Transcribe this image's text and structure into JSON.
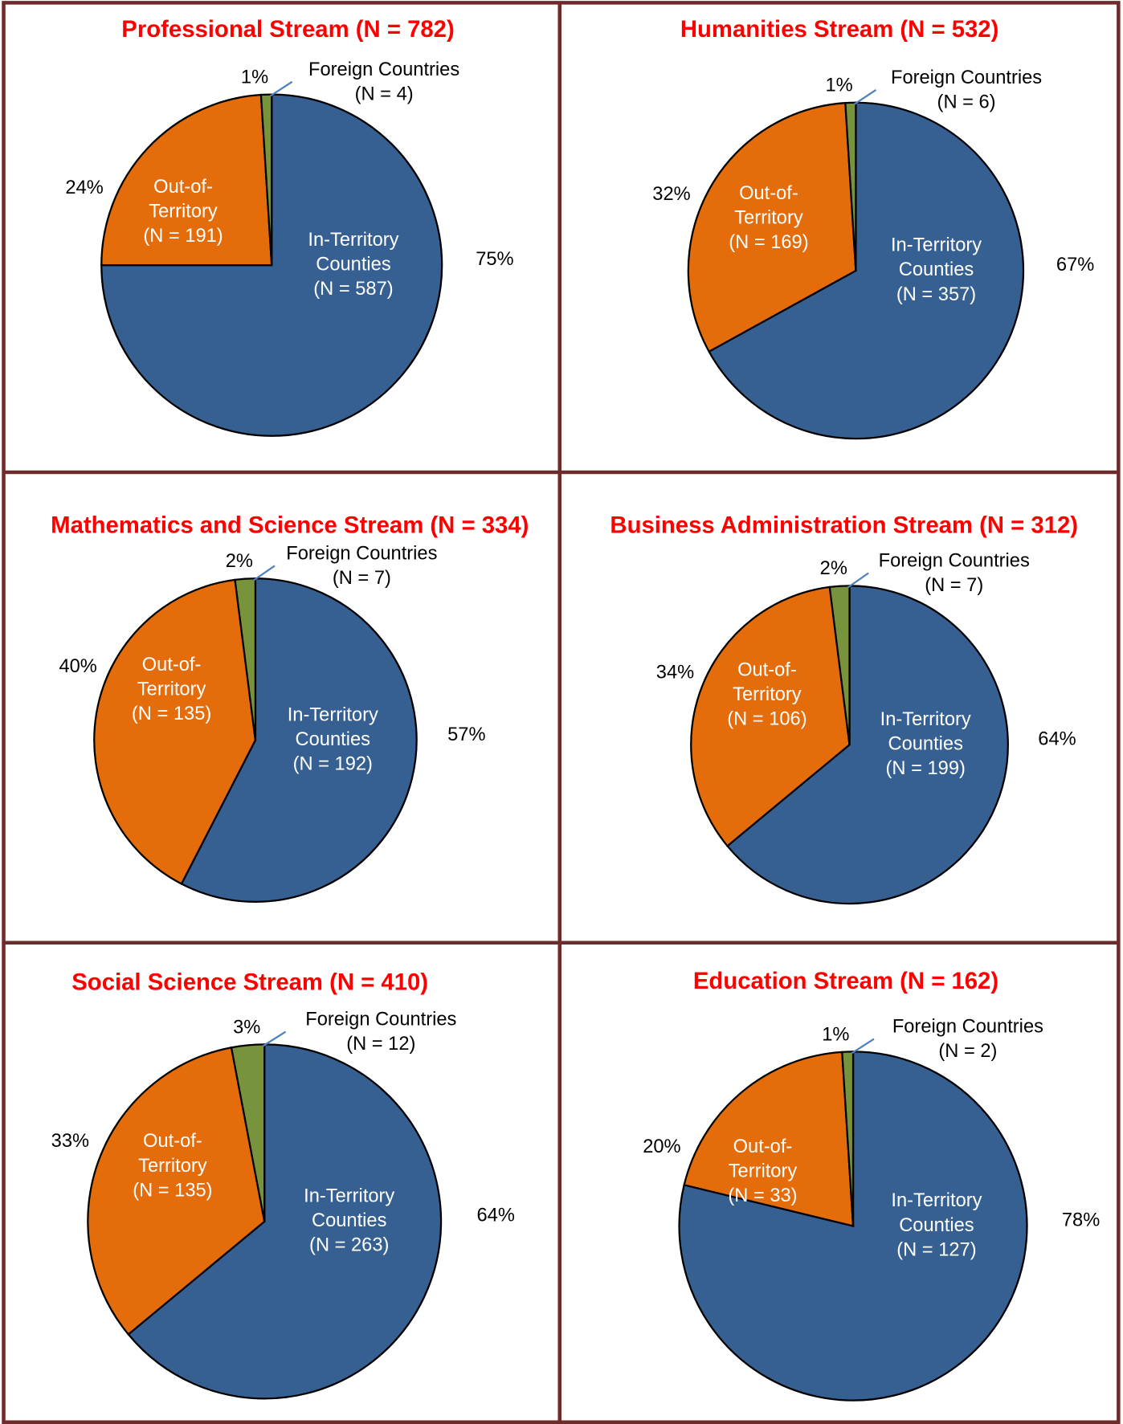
{
  "chart_data": [
    {
      "type": "pie",
      "title": "Professional Stream (N = 782)",
      "categories": [
        [
          "In-Territory",
          "Counties",
          "(N = 587)"
        ],
        [
          "Out-of-",
          "Territory",
          "(N = 191)"
        ],
        [
          "Foreign Countries",
          "(N = 4)"
        ]
      ],
      "values": [
        75,
        24,
        1
      ],
      "value_labels": [
        "75%",
        "24%",
        "1%"
      ],
      "colors": [
        "#376092",
        "#e46c0a",
        "#77933c"
      ]
    },
    {
      "type": "pie",
      "title": "Humanities Stream (N = 532)",
      "categories": [
        [
          "In-Territory",
          "Counties",
          "(N = 357)"
        ],
        [
          "Out-of-",
          "Territory",
          "(N = 169)"
        ],
        [
          "Foreign Countries",
          "(N = 6)"
        ]
      ],
      "values": [
        67,
        32,
        1
      ],
      "value_labels": [
        "67%",
        "32%",
        "1%"
      ],
      "colors": [
        "#376092",
        "#e46c0a",
        "#77933c"
      ]
    },
    {
      "type": "pie",
      "title": "Mathematics and Science Stream (N = 334)",
      "categories": [
        [
          "In-Territory",
          "Counties",
          "(N = 192)"
        ],
        [
          "Out-of-",
          "Territory",
          "(N = 135)"
        ],
        [
          "Foreign Countries",
          "(N = 7)"
        ]
      ],
      "values": [
        57,
        40,
        2
      ],
      "value_labels": [
        "57%",
        "40%",
        "2%"
      ],
      "colors": [
        "#376092",
        "#e46c0a",
        "#77933c"
      ]
    },
    {
      "type": "pie",
      "title": "Business Administration Stream (N = 312)",
      "categories": [
        [
          "In-Territory",
          "Counties",
          "(N = 199)"
        ],
        [
          "Out-of-",
          "Territory",
          "(N = 106)"
        ],
        [
          "Foreign Countries",
          "(N = 7)"
        ]
      ],
      "values": [
        64,
        34,
        2
      ],
      "value_labels": [
        "64%",
        "34%",
        "2%"
      ],
      "colors": [
        "#376092",
        "#e46c0a",
        "#77933c"
      ]
    },
    {
      "type": "pie",
      "title": "Social Science Stream (N = 410)",
      "categories": [
        [
          "In-Territory",
          "Counties",
          "(N = 263)"
        ],
        [
          "Out-of-",
          "Territory",
          "(N = 135)"
        ],
        [
          "Foreign Countries",
          "(N = 12)"
        ]
      ],
      "values": [
        64,
        33,
        3
      ],
      "value_labels": [
        "64%",
        "33%",
        "3%"
      ],
      "colors": [
        "#376092",
        "#e46c0a",
        "#77933c"
      ]
    },
    {
      "type": "pie",
      "title": "Education Stream (N = 162)",
      "categories": [
        [
          "In-Territory",
          "Counties",
          "(N = 127)"
        ],
        [
          "Out-of-",
          "Territory",
          "(N = 33)"
        ],
        [
          "Foreign Countries",
          "(N = 2)"
        ]
      ],
      "values": [
        78,
        20,
        1
      ],
      "value_labels": [
        "78%",
        "20%",
        "1%"
      ],
      "colors": [
        "#376092",
        "#e46c0a",
        "#77933c"
      ]
    }
  ]
}
